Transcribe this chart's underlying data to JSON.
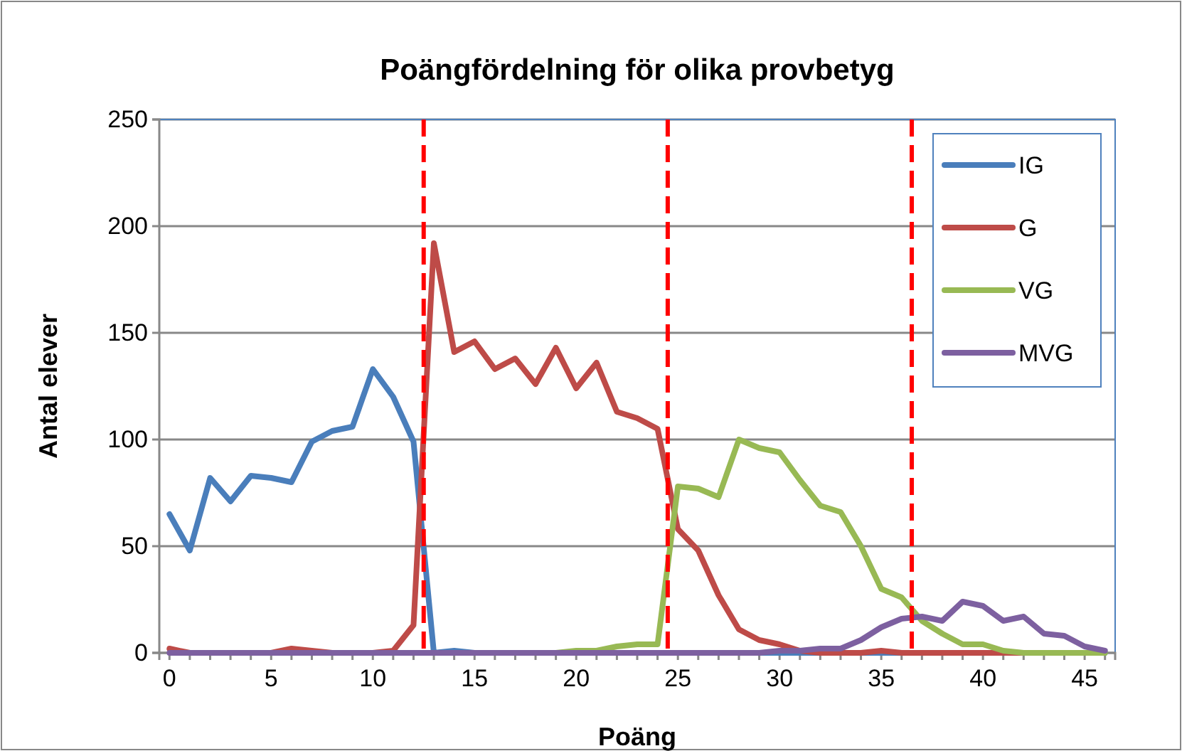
{
  "chart_data": {
    "type": "line",
    "title": "Poängfördelning för olika provbetyg",
    "xlabel": "Poäng",
    "ylabel": "Antal elever",
    "x": [
      0,
      1,
      2,
      3,
      4,
      5,
      6,
      7,
      8,
      9,
      10,
      11,
      12,
      13,
      14,
      15,
      16,
      17,
      18,
      19,
      20,
      21,
      22,
      23,
      24,
      25,
      26,
      27,
      28,
      29,
      30,
      31,
      32,
      33,
      34,
      35,
      36,
      37,
      38,
      39,
      40,
      41,
      42,
      43,
      44,
      45,
      46
    ],
    "xlim": [
      -0.5,
      46.5
    ],
    "xticks": [
      0,
      {
        "value": 1,
        "label": null
      },
      {
        "value": 2,
        "label": null
      },
      {
        "value": 3,
        "label": null
      },
      {
        "value": 4,
        "label": null
      },
      5,
      {
        "value": 6,
        "label": null
      },
      {
        "value": 7,
        "label": null
      },
      {
        "value": 8,
        "label": null
      },
      {
        "value": 9,
        "label": null
      },
      10,
      {
        "value": 11,
        "label": null
      },
      {
        "value": 12,
        "label": null
      },
      {
        "value": 13,
        "label": null
      },
      {
        "value": 14,
        "label": null
      },
      15,
      {
        "value": 16,
        "label": null
      },
      {
        "value": 17,
        "label": null
      },
      {
        "value": 18,
        "label": null
      },
      {
        "value": 19,
        "label": null
      },
      20,
      {
        "value": 21,
        "label": null
      },
      {
        "value": 22,
        "label": null
      },
      {
        "value": 23,
        "label": null
      },
      {
        "value": 24,
        "label": null
      },
      25,
      {
        "value": 26,
        "label": null
      },
      {
        "value": 27,
        "label": null
      },
      {
        "value": 28,
        "label": null
      },
      {
        "value": 29,
        "label": null
      },
      30,
      {
        "value": 31,
        "label": null
      },
      {
        "value": 32,
        "label": null
      },
      {
        "value": 33,
        "label": null
      },
      {
        "value": 34,
        "label": null
      },
      35,
      {
        "value": 36,
        "label": null
      },
      {
        "value": 37,
        "label": null
      },
      {
        "value": 38,
        "label": null
      },
      {
        "value": 39,
        "label": null
      },
      40,
      {
        "value": 41,
        "label": null
      },
      {
        "value": 42,
        "label": null
      },
      {
        "value": 43,
        "label": null
      },
      {
        "value": 44,
        "label": null
      },
      45,
      {
        "value": 46,
        "label": null
      }
    ],
    "ylim": [
      0,
      250
    ],
    "yticks": [
      0,
      50,
      100,
      150,
      200,
      250
    ],
    "grid": "y",
    "legend": "top right",
    "marker": "none",
    "line_style": "solid",
    "series": [
      {
        "name": "IG",
        "color": "#4a7ebb",
        "values": [
          65,
          48,
          82,
          71,
          83,
          82,
          80,
          99,
          104,
          106,
          133,
          120,
          99,
          0,
          1,
          0,
          0,
          0,
          0,
          0,
          0,
          0,
          0,
          0,
          0,
          0,
          0,
          0,
          0,
          0,
          0,
          0,
          0,
          0,
          0,
          0,
          0,
          0,
          0,
          0,
          0,
          0,
          0,
          0,
          0,
          0,
          0
        ]
      },
      {
        "name": "G",
        "color": "#be4b48",
        "values": [
          2,
          0,
          0,
          0,
          0,
          0,
          2,
          1,
          0,
          0,
          0,
          1,
          13,
          192,
          141,
          146,
          133,
          138,
          126,
          143,
          124,
          136,
          113,
          110,
          105,
          58,
          48,
          27,
          11,
          6,
          4,
          1,
          0,
          0,
          0,
          1,
          0,
          0,
          0,
          0,
          0,
          0,
          0,
          0,
          null,
          null,
          null
        ]
      },
      {
        "name": "VG",
        "color": "#98b954",
        "values": [
          null,
          null,
          null,
          null,
          null,
          null,
          null,
          null,
          null,
          null,
          null,
          null,
          null,
          null,
          null,
          null,
          null,
          null,
          0,
          0,
          1,
          1,
          3,
          4,
          4,
          78,
          77,
          73,
          100,
          96,
          94,
          81,
          69,
          66,
          50,
          30,
          26,
          15,
          9,
          4,
          4,
          1,
          0,
          0,
          0,
          0,
          0
        ]
      },
      {
        "name": "MVG",
        "color": "#7d60a0",
        "values": [
          0,
          0,
          0,
          0,
          0,
          0,
          0,
          0,
          0,
          0,
          0,
          0,
          0,
          0,
          0,
          0,
          0,
          0,
          0,
          0,
          0,
          0,
          0,
          0,
          0,
          0,
          0,
          0,
          0,
          0,
          1,
          1,
          2,
          2,
          6,
          12,
          16,
          17,
          15,
          24,
          22,
          15,
          17,
          9,
          8,
          3,
          1
        ]
      }
    ],
    "ref_lines": [
      {
        "axis": "x",
        "value": 12.5,
        "color": "#ff0000",
        "line_style": "dashed"
      },
      {
        "axis": "x",
        "value": 24.5,
        "color": "#ff0000",
        "line_style": "dashed"
      },
      {
        "axis": "x",
        "value": 36.5,
        "color": "#ff0000",
        "line_style": "dashed"
      }
    ]
  }
}
